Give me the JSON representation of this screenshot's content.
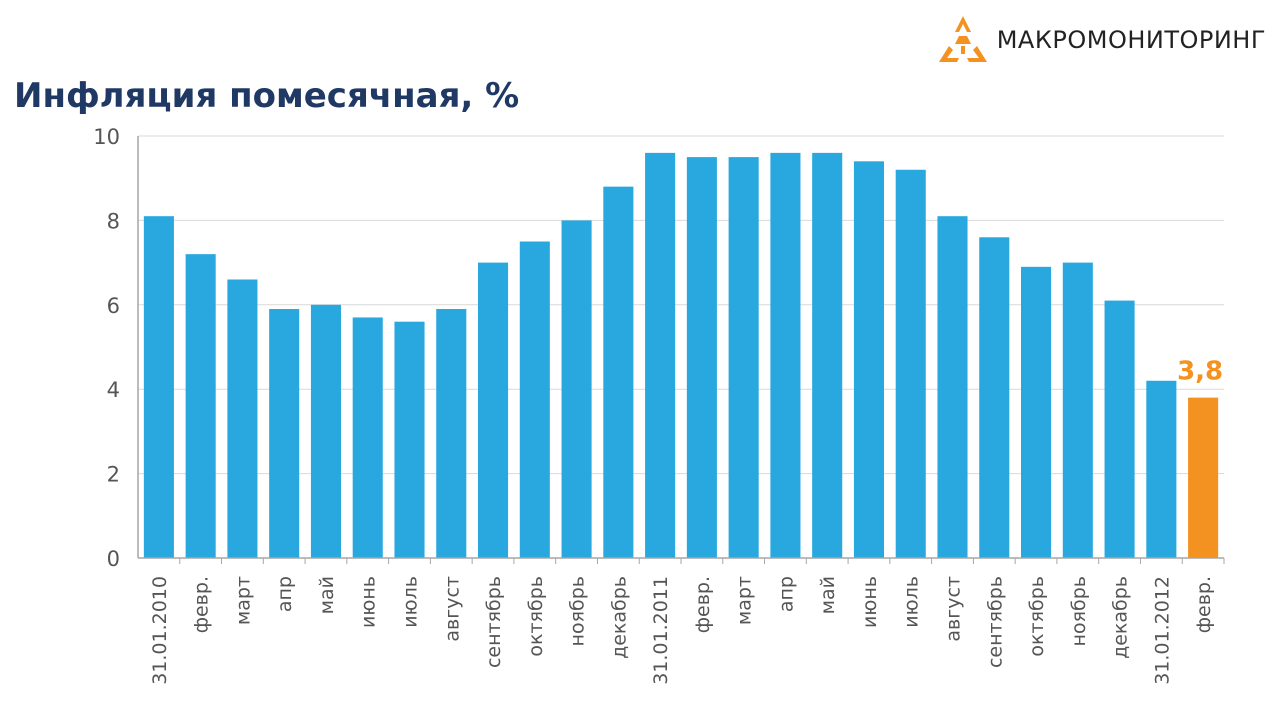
{
  "brand": {
    "name": "МАКРОМОНИТОРИНГ",
    "logo_color": "#f39221"
  },
  "chart_data": {
    "type": "bar",
    "title": "Инфляция помесячная, %",
    "xlabel": "",
    "ylabel": "",
    "ylim": [
      0,
      10
    ],
    "yticks": [
      0,
      2,
      4,
      6,
      8,
      10
    ],
    "grid": true,
    "categories": [
      "31.01.2010",
      "февр.",
      "март",
      "апр",
      "май",
      "июнь",
      "июль",
      "август",
      "сентябрь",
      "октябрь",
      "ноябрь",
      "декабрь",
      "31.01.2011",
      "февр.",
      "март",
      "апр",
      "май",
      "июнь",
      "июль",
      "август",
      "сентябрь",
      "октябрь",
      "ноябрь",
      "декабрь",
      "31.01.2012",
      "февр."
    ],
    "values": [
      8.1,
      7.2,
      6.6,
      5.9,
      6.0,
      5.7,
      5.6,
      5.9,
      7.0,
      7.5,
      8.0,
      8.8,
      9.6,
      9.5,
      9.5,
      9.6,
      9.6,
      9.4,
      9.2,
      8.1,
      7.6,
      6.9,
      7.0,
      6.1,
      4.2,
      3.8
    ],
    "colors": {
      "bar": "#29a8e0",
      "highlight": "#f39221",
      "grid": "#d9d9d9",
      "axis": "#a6a6a6"
    },
    "highlight_index": 25,
    "data_labels": [
      {
        "index": 25,
        "text": "3,8"
      }
    ]
  }
}
